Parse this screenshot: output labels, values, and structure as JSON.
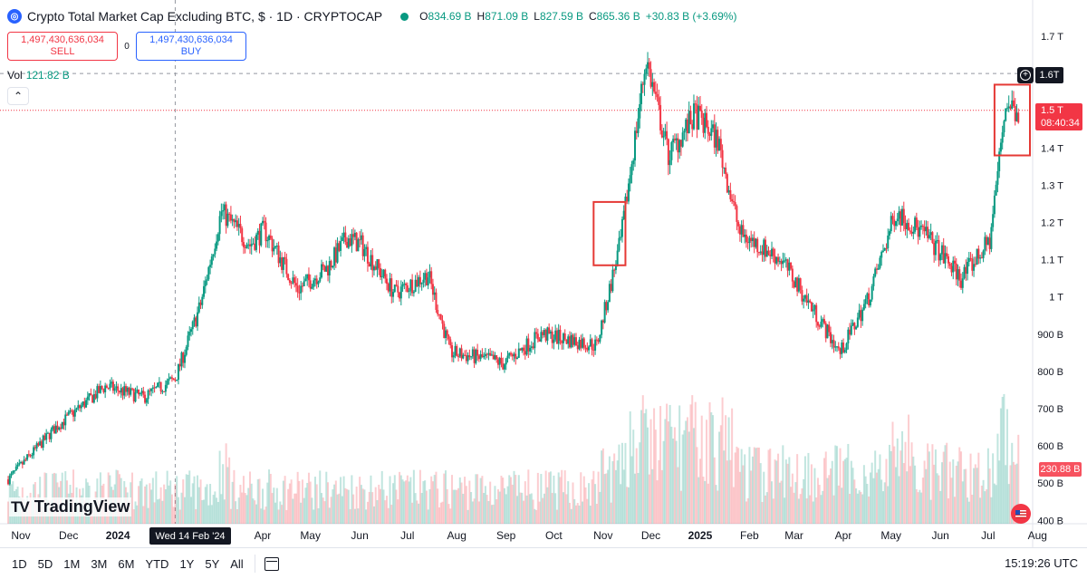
{
  "header": {
    "title": "Crypto Total Market Cap Excluding BTC, $ · 1D · CRYPTOCAP",
    "ohlc": [
      {
        "key": "O",
        "value": "834.69 B"
      },
      {
        "key": "H",
        "value": "871.09 B"
      },
      {
        "key": "L",
        "value": "827.59 B"
      },
      {
        "key": "C",
        "value": "865.36 B"
      }
    ],
    "change": "+30.83 B (+3.69%)"
  },
  "trade": {
    "sell_price": "1,497,430,636,034",
    "sell_label": "SELL",
    "spread": "0",
    "buy_price": "1,497,430,636,034",
    "buy_label": "BUY"
  },
  "volume": {
    "label": "Vol",
    "value": "121.82 B"
  },
  "price_scale": {
    "crosshair_label": "1.6T",
    "last_price": "1.5 T",
    "countdown": "08:40:34",
    "volume_last": "230.88 B"
  },
  "crosshair_date": "Wed 14 Feb '24",
  "branding": "TradingView",
  "toolbar": {
    "ranges": [
      "1D",
      "5D",
      "1M",
      "3M",
      "6M",
      "YTD",
      "1Y",
      "5Y",
      "All"
    ],
    "clock": "15:19:26 UTC"
  },
  "colors": {
    "up": "#089981",
    "down": "#f23645",
    "accent": "#2962ff",
    "highlight_box": "#e53935"
  },
  "chart_data": {
    "type": "candlestick",
    "title": "Crypto Total Market Cap Excluding BTC, $ · 1D · CRYPTOCAP",
    "y_unit": "USD",
    "y_ticks": [
      "1.7 T",
      "1.6T",
      "1.5 T",
      "1.4 T",
      "1.3 T",
      "1.2 T",
      "1.1 T",
      "1 T",
      "900 B",
      "800 B",
      "700 B",
      "600 B",
      "500 B",
      "400 B"
    ],
    "x_ticks": [
      "Nov",
      "Dec",
      "2024",
      "Apr",
      "May",
      "Jun",
      "Jul",
      "Aug",
      "Sep",
      "Oct",
      "Nov",
      "Dec",
      "2025",
      "Feb",
      "Mar",
      "Apr",
      "May",
      "Jun",
      "Jul",
      "Aug"
    ],
    "ylim_billions": [
      400,
      1750
    ],
    "approx_close_path_billions": [
      {
        "date": "2023-11-01",
        "value": 510
      },
      {
        "date": "2023-12-01",
        "value": 650
      },
      {
        "date": "2024-01-01",
        "value": 760
      },
      {
        "date": "2024-01-25",
        "value": 730
      },
      {
        "date": "2024-02-14",
        "value": 780
      },
      {
        "date": "2024-03-01",
        "value": 980
      },
      {
        "date": "2024-03-14",
        "value": 1230
      },
      {
        "date": "2024-04-01",
        "value": 1140
      },
      {
        "date": "2024-04-10",
        "value": 1180
      },
      {
        "date": "2024-05-01",
        "value": 1020
      },
      {
        "date": "2024-05-20",
        "value": 1080
      },
      {
        "date": "2024-06-01",
        "value": 1160
      },
      {
        "date": "2024-06-10",
        "value": 1140
      },
      {
        "date": "2024-07-01",
        "value": 1010
      },
      {
        "date": "2024-07-22",
        "value": 1060
      },
      {
        "date": "2024-08-05",
        "value": 850
      },
      {
        "date": "2024-09-01",
        "value": 830
      },
      {
        "date": "2024-09-07",
        "value": 820
      },
      {
        "date": "2024-10-01",
        "value": 900
      },
      {
        "date": "2024-11-05",
        "value": 870
      },
      {
        "date": "2024-11-20",
        "value": 1150
      },
      {
        "date": "2024-12-06",
        "value": 1640
      },
      {
        "date": "2024-12-20",
        "value": 1380
      },
      {
        "date": "2025-01-06",
        "value": 1490
      },
      {
        "date": "2025-01-20",
        "value": 1420
      },
      {
        "date": "2025-02-03",
        "value": 1170
      },
      {
        "date": "2025-03-01",
        "value": 1100
      },
      {
        "date": "2025-04-07",
        "value": 850
      },
      {
        "date": "2025-04-25",
        "value": 1000
      },
      {
        "date": "2025-05-12",
        "value": 1230
      },
      {
        "date": "2025-06-01",
        "value": 1160
      },
      {
        "date": "2025-06-22",
        "value": 1050
      },
      {
        "date": "2025-07-10",
        "value": 1150
      },
      {
        "date": "2025-07-20",
        "value": 1520
      },
      {
        "date": "2025-07-28",
        "value": 1500
      }
    ],
    "grid": false,
    "legend": "top-left"
  }
}
